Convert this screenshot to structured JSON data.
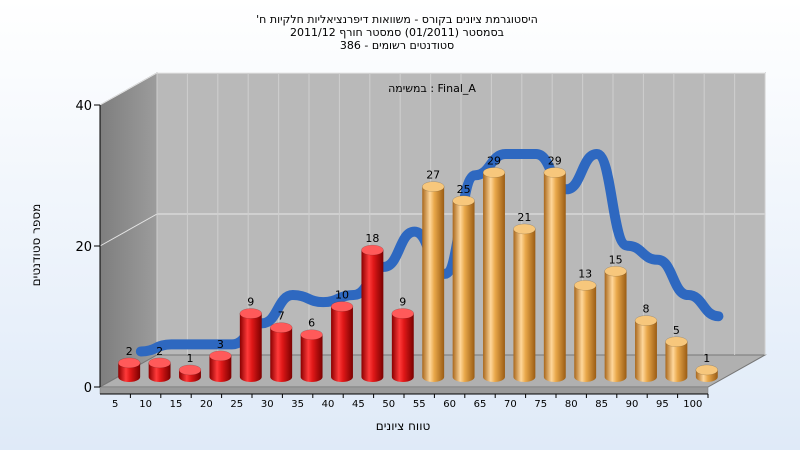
{
  "chart_data": {
    "type": "bar",
    "title_lines": [
      "היסטוגרמת ציונים בקורס - משוואות דיפרנציאליות חלקיות ח'",
      "בסמסטר  (01/2011)  סמסטר חורף 2011/12",
      "סטודנטים רשומים - 386"
    ],
    "subtitle": "במשימה : Final_A",
    "xlabel": "טווח ציונים",
    "ylabel": "מספר סטודנטים",
    "ylim": [
      0,
      40
    ],
    "yticks": [
      0,
      20,
      40
    ],
    "categories": [
      "5",
      "10",
      "15",
      "20",
      "25",
      "30",
      "35",
      "40",
      "45",
      "50",
      "55",
      "60",
      "65",
      "70",
      "75",
      "80",
      "85",
      "90",
      "95",
      "100"
    ],
    "values": [
      2,
      2,
      1,
      3,
      9,
      7,
      6,
      10,
      18,
      9,
      27,
      25,
      29,
      21,
      29,
      13,
      15,
      8,
      5,
      1
    ],
    "fail_color": "#e01818",
    "pass_color": "#e9a84a",
    "pass_from_index": 10,
    "trend_line_color": "#2e68c0",
    "trend_line_values": [
      3,
      4,
      4,
      4,
      7,
      11,
      10,
      11,
      15,
      20,
      14,
      28,
      31,
      31,
      26,
      31,
      18,
      16,
      11,
      8
    ],
    "grid": true
  }
}
